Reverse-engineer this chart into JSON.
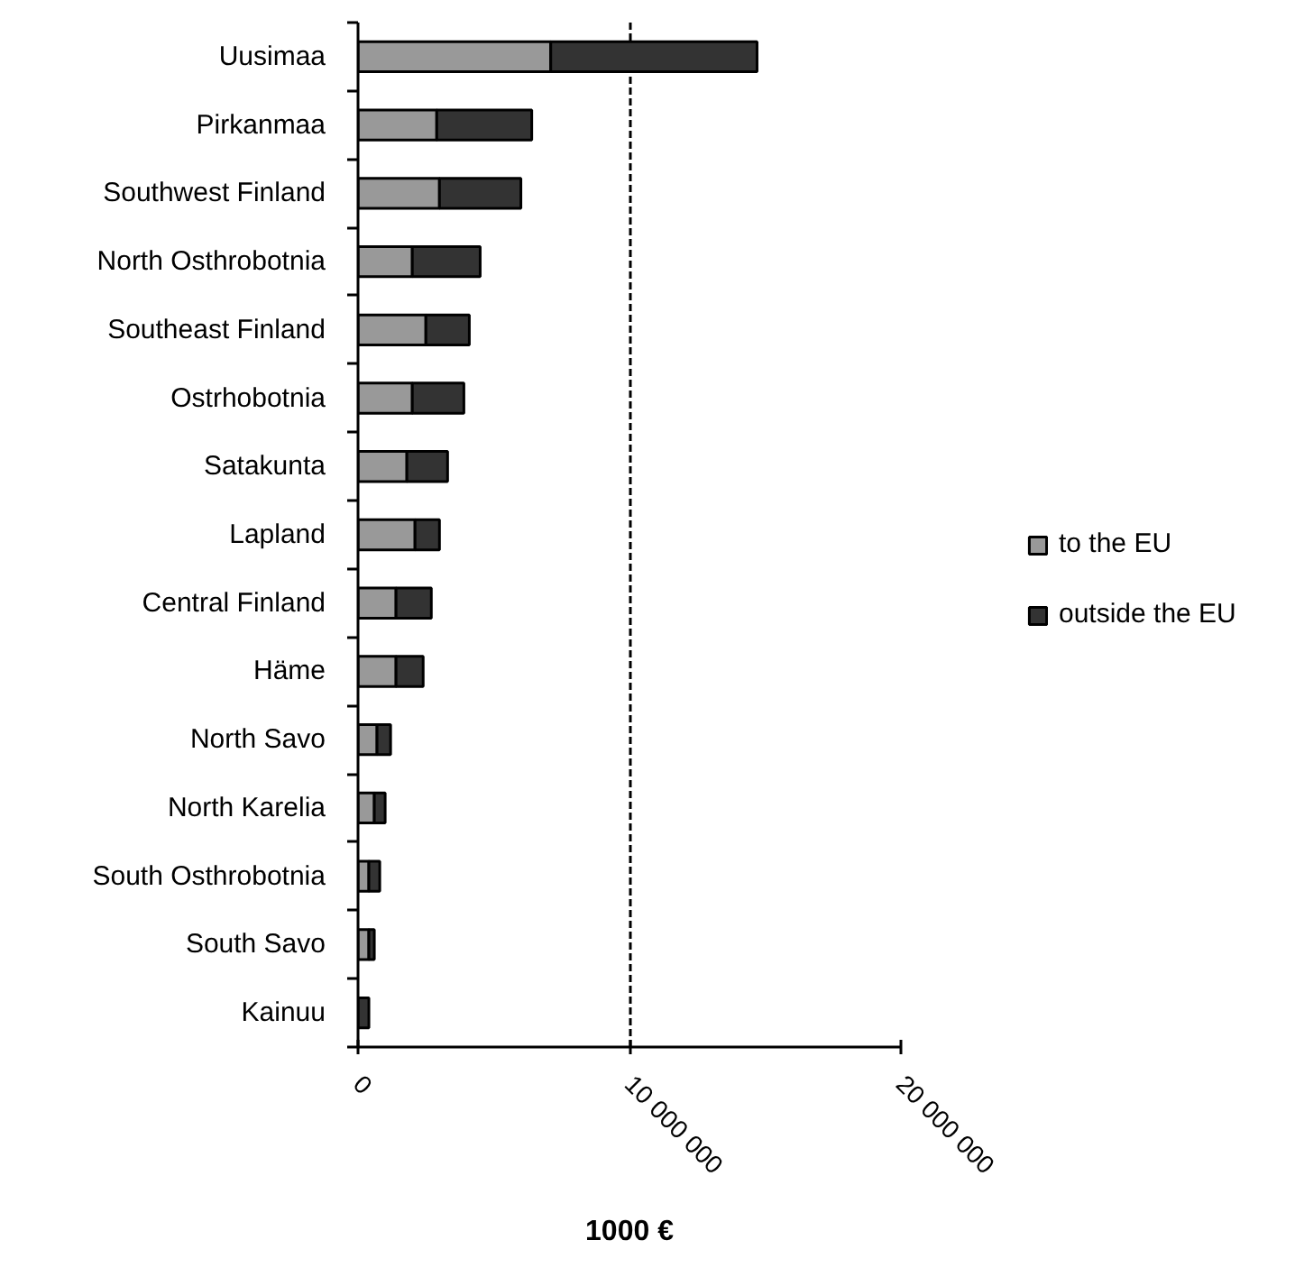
{
  "chart_data": {
    "type": "bar",
    "orientation": "horizontal",
    "stacked": true,
    "categories": [
      "Uusimaa",
      "Pirkanmaa",
      "Southwest Finland",
      "North Osthrobotnia",
      "Southeast Finland",
      "Ostrhobotnia",
      "Satakunta",
      "Lapland",
      "Central Finland",
      "Häme",
      "North Savo",
      "North Karelia",
      "South Osthrobotnia",
      "South Savo",
      "Kainuu"
    ],
    "series": [
      {
        "name": "to the EU",
        "color": "#999999",
        "values": [
          7100000,
          2900000,
          3000000,
          2000000,
          2500000,
          2000000,
          1800000,
          2100000,
          1400000,
          1400000,
          700000,
          600000,
          400000,
          400000,
          null
        ]
      },
      {
        "name": "outside the EU",
        "color": "#333333",
        "values": [
          7600000,
          3500000,
          3000000,
          2500000,
          1600000,
          1900000,
          1500000,
          900000,
          1300000,
          1000000,
          500000,
          400000,
          400000,
          200000,
          400000
        ]
      }
    ],
    "xlim": [
      0,
      20000000
    ],
    "xticks": [
      0,
      {
        "value": 10000000,
        "label": "10 000 000"
      },
      {
        "value": 20000000,
        "label": "20 000 000"
      }
    ],
    "xlabel": "1000 €",
    "grid": "x",
    "legend": "right"
  }
}
